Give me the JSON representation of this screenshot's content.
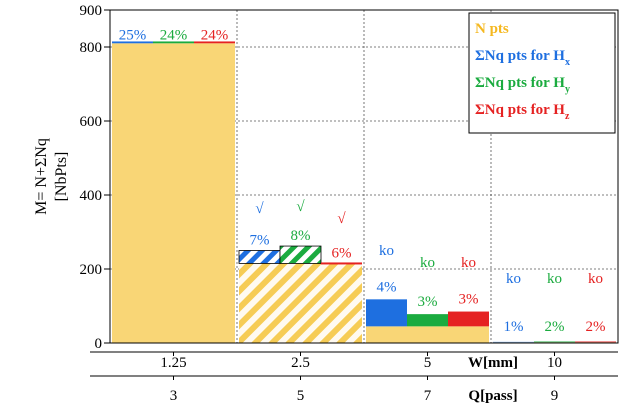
{
  "chart_data": {
    "type": "bar",
    "ylabel_line1": "M= N+ΣNq",
    "ylabel_line2": "[NbPts]",
    "ylim": [
      0,
      900
    ],
    "y_ticks": [
      "0",
      "200",
      "400",
      "600",
      "800",
      "900"
    ],
    "x_axis_1": {
      "name": "W[mm]",
      "categories": [
        "1.25",
        "2.5",
        "5",
        "10"
      ]
    },
    "x_axis_2": {
      "name": "Q[pass]",
      "categories": [
        "3",
        "5",
        "7",
        "9"
      ]
    },
    "legend_position": "top-right",
    "legend": [
      {
        "key": "N",
        "text": "N pts",
        "sub": "",
        "color": "#f5b820"
      },
      {
        "key": "Hx",
        "text": "ΣNq pts for H",
        "sub": "x",
        "color": "#1e6fe0"
      },
      {
        "key": "Hy",
        "text": "ΣNq pts for H",
        "sub": "y",
        "color": "#1bab3f"
      },
      {
        "key": "Hz",
        "text": "ΣNq pts for H",
        "sub": "z",
        "color": "#e52222"
      }
    ],
    "colors": {
      "N": "#f9d676",
      "N_hatch": "#f6cc55",
      "Hx": "#1e6fe0",
      "Hy": "#1bab3f",
      "Hz": "#e52222"
    },
    "groups": [
      {
        "category": "1.25",
        "N": 810,
        "hatched": false,
        "Hx": 815,
        "Hy": 815,
        "Hz": 815,
        "pct": [
          "25%",
          "24%",
          "24%"
        ],
        "status": [
          "",
          "",
          ""
        ]
      },
      {
        "category": "2.5",
        "N": 215,
        "hatched": true,
        "Hx": 250,
        "Hy": 262,
        "Hz": 215,
        "pct": [
          "7%",
          "8%",
          "6%"
        ],
        "status": [
          "√",
          "√",
          "√"
        ]
      },
      {
        "category": "5",
        "N": 45,
        "hatched": false,
        "Hx": 118,
        "Hy": 78,
        "Hz": 85,
        "pct": [
          "4%",
          "3%",
          "3%"
        ],
        "status": [
          "ko",
          "ko",
          "ko"
        ]
      },
      {
        "category": "10",
        "N": 2,
        "hatched": false,
        "Hx": 3,
        "Hy": 4,
        "Hz": 4,
        "pct": [
          "1%",
          "2%",
          "2%"
        ],
        "status": [
          "ko",
          "ko",
          "ko"
        ]
      }
    ]
  }
}
